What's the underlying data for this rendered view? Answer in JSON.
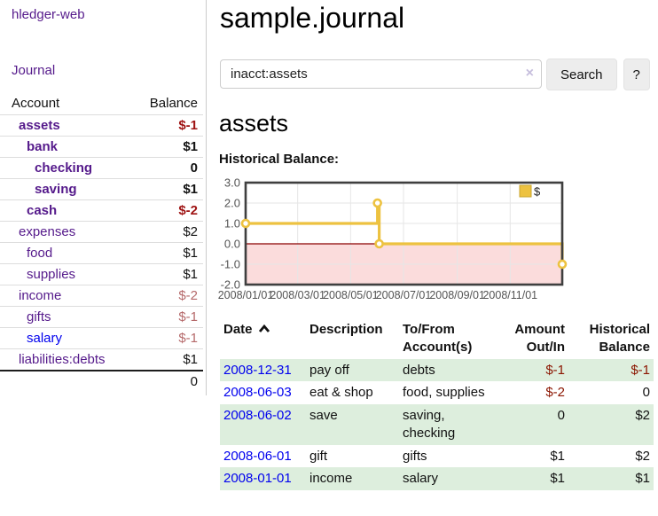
{
  "sidebar": {
    "app_title": "hledger-web",
    "nav": {
      "journal_label": "Journal"
    },
    "accounts_table": {
      "headers": {
        "account": "Account",
        "balance": "Balance"
      },
      "rows": [
        {
          "name": "assets",
          "indent": 1,
          "bold": true,
          "balance": "$-1",
          "balance_bold": true,
          "balance_neg": true
        },
        {
          "name": "bank",
          "indent": 2,
          "bold": true,
          "balance": "$1",
          "balance_bold": true
        },
        {
          "name": "checking",
          "indent": 3,
          "bold": true,
          "balance": "0",
          "balance_bold": true
        },
        {
          "name": "saving",
          "indent": 3,
          "bold": true,
          "balance": "$1",
          "balance_bold": true
        },
        {
          "name": "cash",
          "indent": 2,
          "bold": true,
          "balance": "$-2",
          "balance_bold": true,
          "balance_neg": true
        },
        {
          "name": "expenses",
          "indent": 1,
          "balance": "$2"
        },
        {
          "name": "food",
          "indent": 2,
          "balance": "$1"
        },
        {
          "name": "supplies",
          "indent": 2,
          "balance": "$1"
        },
        {
          "name": "income",
          "indent": 1,
          "balance": "$-2",
          "balance_neg_muted": true
        },
        {
          "name": "gifts",
          "indent": 2,
          "balance": "$-1",
          "balance_neg_muted": true
        },
        {
          "name": "salary",
          "indent": 2,
          "balance": "$-1",
          "balance_neg_muted": true,
          "unvisited": true
        },
        {
          "name": "liabilities:debts",
          "indent": 1,
          "balance": "$1"
        }
      ],
      "total": "0"
    }
  },
  "main": {
    "title": "sample.journal",
    "search": {
      "value": "inacct:assets",
      "clear_icon": "×",
      "button_label": "Search",
      "help_label": "?"
    },
    "account_heading": "assets",
    "chart_label": "Historical Balance:"
  },
  "chart_data": {
    "type": "line",
    "title": "Historical Balance",
    "step": true,
    "series": [
      {
        "name": "$",
        "color": "#edc240",
        "points": [
          [
            "2008-01-01",
            1
          ],
          [
            "2008-06-01",
            2
          ],
          [
            "2008-06-03",
            0
          ],
          [
            "2008-12-31",
            -1
          ]
        ]
      }
    ],
    "xlim": [
      "2008-01-01",
      "2008-12-31"
    ],
    "ylim": [
      -2,
      3
    ],
    "yticks": [
      "3.0",
      "2.0",
      "1.0",
      "0.0",
      "-1.0",
      "-2.0"
    ],
    "xticks": [
      "2008/01/01",
      "2008/03/01",
      "2008/05/01",
      "2008/07/01",
      "2008/09/01",
      "2008/11/01"
    ],
    "grid": true,
    "legend_position": "top-right",
    "negative_fill": "#fbdcdc",
    "zero_line_color": "#8b0000",
    "grid_color": "#e6e6e6",
    "border_color": "#3f3f3f",
    "tick_label_color": "#545454"
  },
  "transactions": {
    "headers": {
      "date": "Date",
      "description": "Description",
      "accounts": "To/From Account(s)",
      "amount": "Amount Out/In",
      "balance": "Historical Balance"
    },
    "rows": [
      {
        "date": "2008-12-31",
        "description": "pay off",
        "accounts": "debts",
        "amount": "$-1",
        "amount_neg": true,
        "balance": "$-1",
        "balance_neg": true
      },
      {
        "date": "2008-06-03",
        "description": "eat & shop",
        "accounts": "food, supplies",
        "amount": "$-2",
        "amount_neg": true,
        "balance": "0"
      },
      {
        "date": "2008-06-02",
        "description": "save",
        "accounts": "saving, checking",
        "amount": "0",
        "balance": "$2"
      },
      {
        "date": "2008-06-01",
        "description": "gift",
        "accounts": "gifts",
        "amount": "$1",
        "balance": "$2"
      },
      {
        "date": "2008-01-01",
        "description": "income",
        "accounts": "salary",
        "amount": "$1",
        "balance": "$1"
      }
    ]
  },
  "colors": {
    "link_visited_purple": "#551a8b",
    "link_blue": "#0000ee",
    "negative_bold_red": "#9e1212",
    "negative_muted_red": "#b5696a",
    "negative_table_red": "#8b1500",
    "row_stripe_green": "#ddeedd",
    "series_gold": "#edc240"
  }
}
